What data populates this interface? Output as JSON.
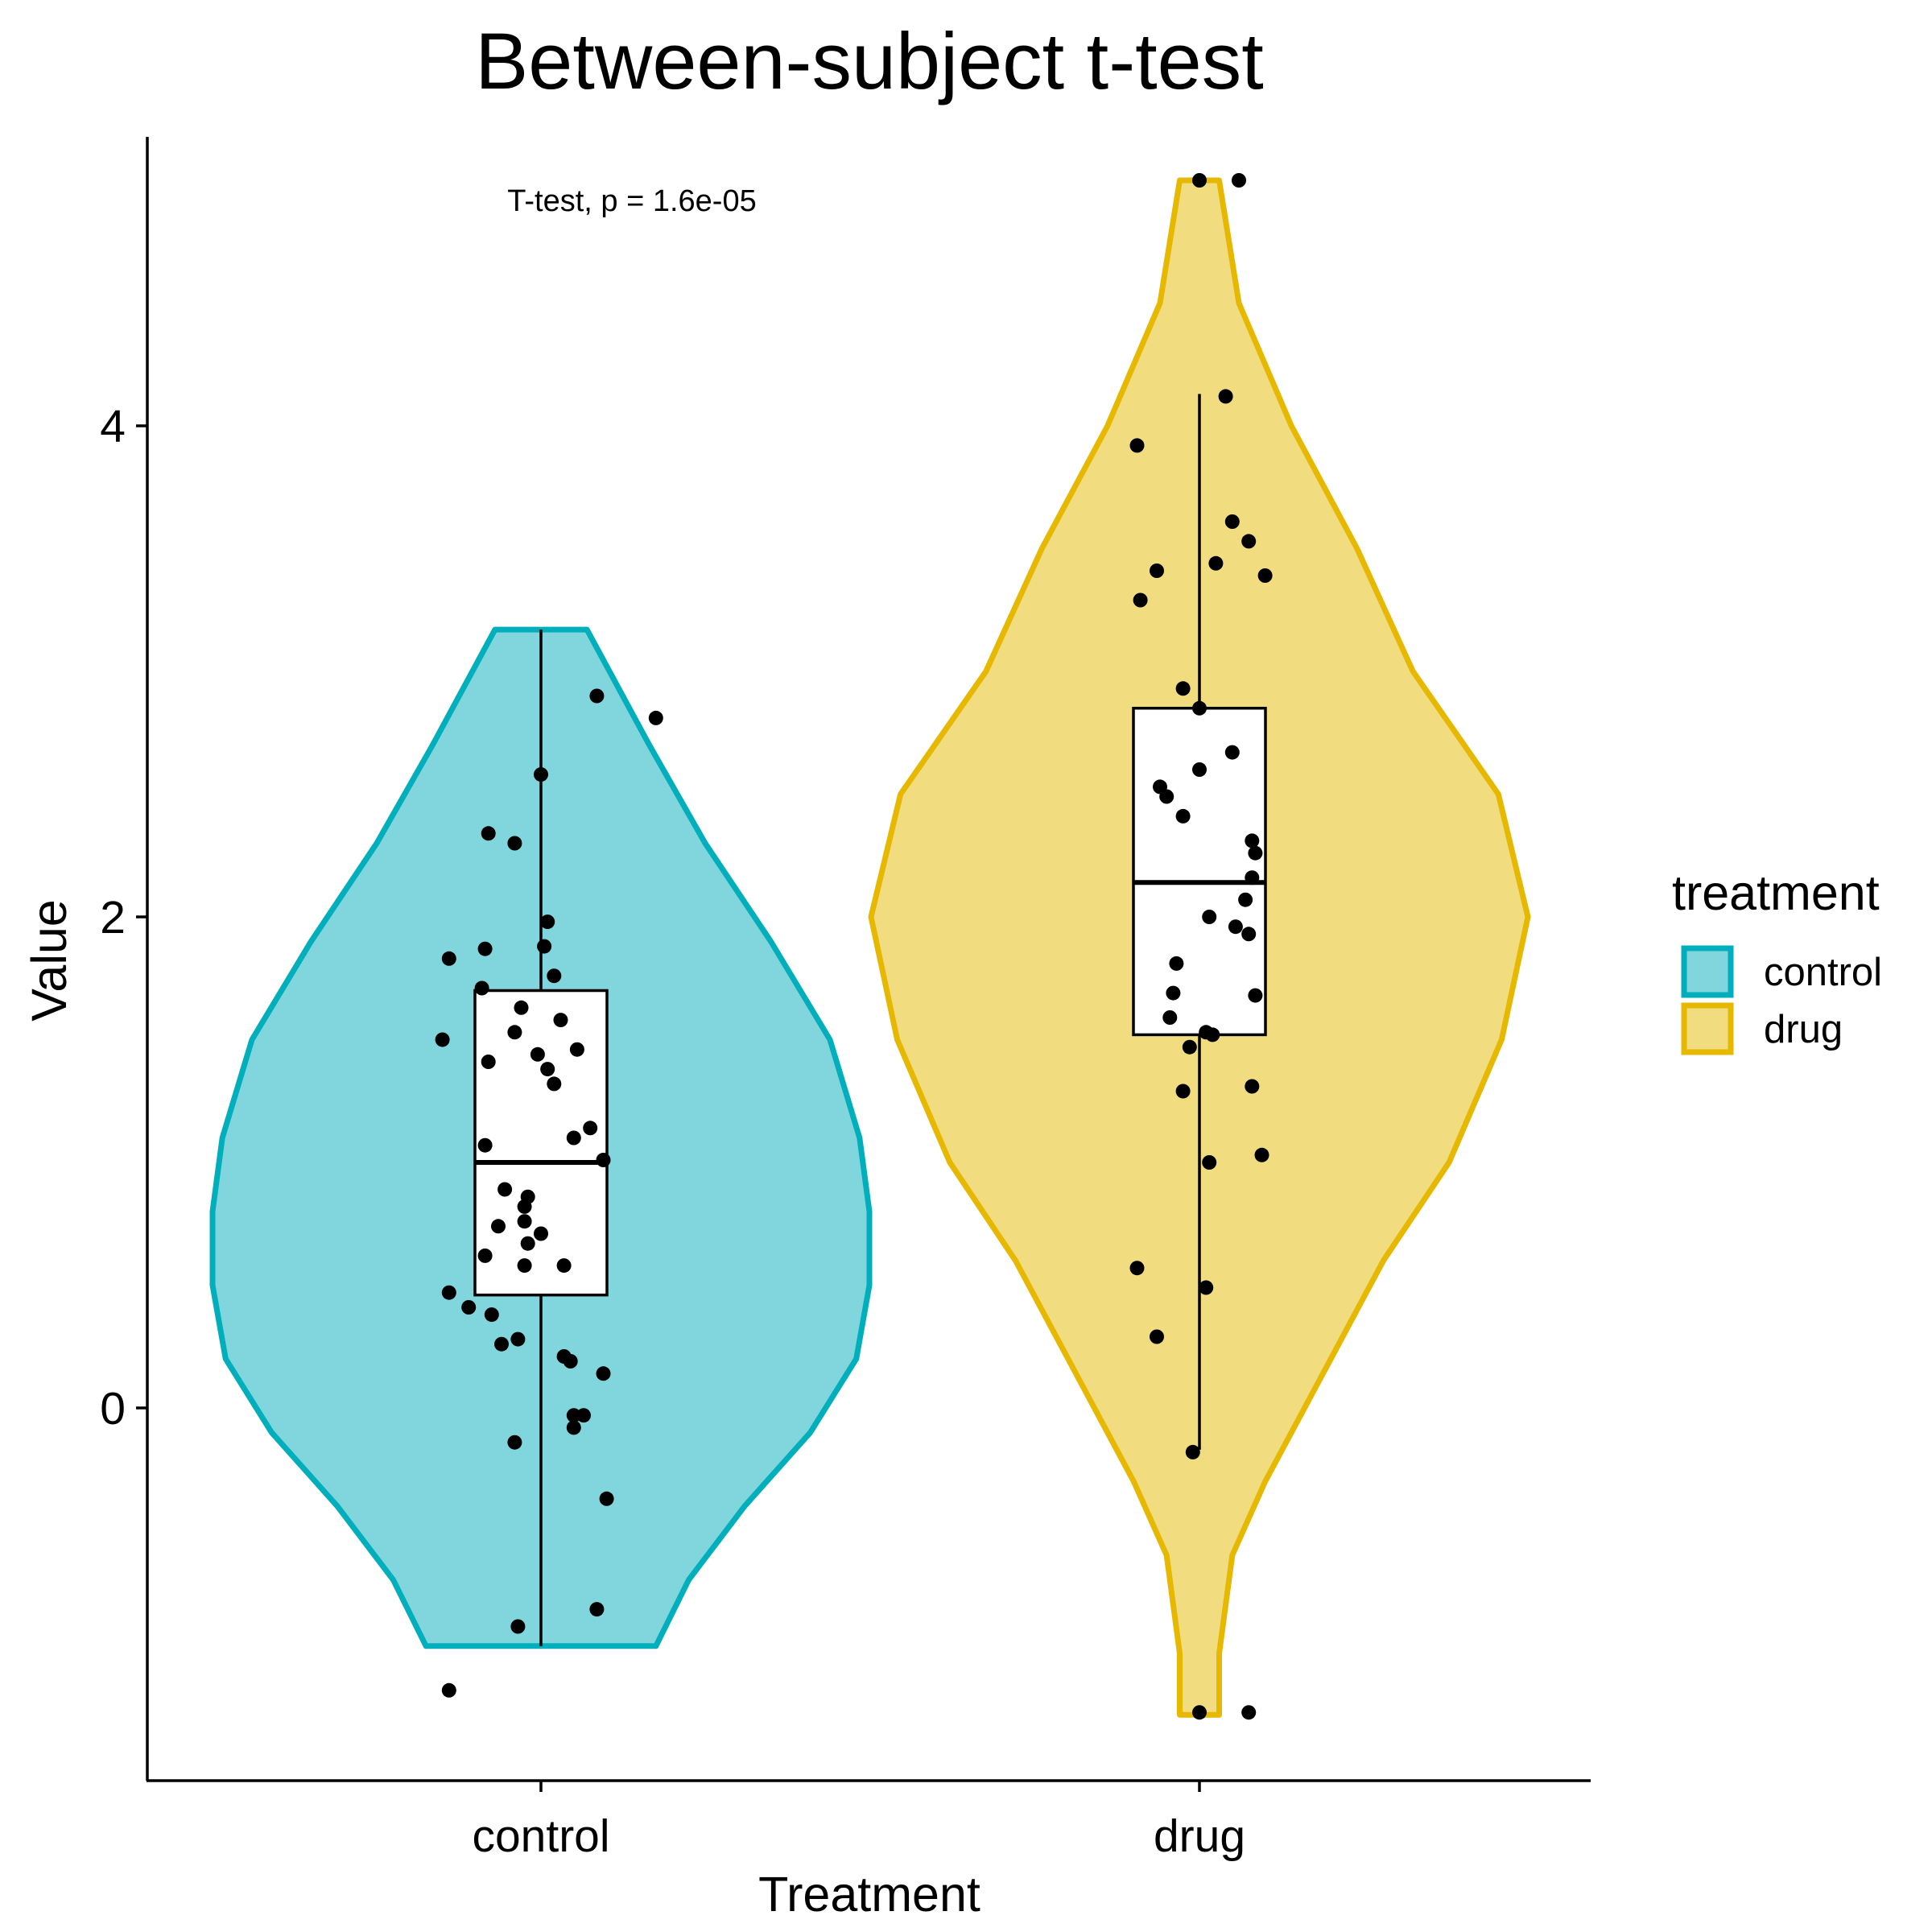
{
  "chart_data": {
    "type": "violin",
    "title": "Between-subject t-test",
    "xlabel": "Treatment",
    "ylabel": "Value",
    "categories": [
      "control",
      "drug"
    ],
    "ylim": [
      -1.55,
      5.15
    ],
    "yticks": [
      0,
      2,
      4
    ],
    "ytick_labels": [
      "0",
      "2",
      "4"
    ],
    "annotation": "T-test, p = 1.6e-05",
    "legend": {
      "title": "treatment",
      "position": "right",
      "entries": [
        "control",
        "drug"
      ]
    },
    "colors": {
      "control": {
        "fill": "#80d6dc",
        "stroke": "#00afbb"
      },
      "drug": {
        "fill": "#f1dc80",
        "stroke": "#e7b800"
      }
    },
    "series": [
      {
        "category": "control",
        "violin_density": [
          [
            -0.97,
            0.35
          ],
          [
            -0.7,
            0.45
          ],
          [
            -0.4,
            0.62
          ],
          [
            -0.1,
            0.82
          ],
          [
            0.2,
            0.96
          ],
          [
            0.5,
            1.0
          ],
          [
            0.8,
            1.0
          ],
          [
            1.1,
            0.97
          ],
          [
            1.5,
            0.88
          ],
          [
            1.9,
            0.7
          ],
          [
            2.3,
            0.5
          ],
          [
            2.7,
            0.33
          ],
          [
            3.17,
            0.14
          ]
        ],
        "box": {
          "min": -0.97,
          "q1": 0.46,
          "median": 1.0,
          "q3": 1.7,
          "max": 3.17
        },
        "points": [
          {
            "x": -0.28,
            "y": 0.47
          },
          {
            "x": 0.19,
            "y": 1.01
          },
          {
            "x": -0.17,
            "y": 1.87
          },
          {
            "x": -0.28,
            "y": -1.15
          },
          {
            "x": 0.35,
            "y": 2.81
          },
          {
            "x": -0.18,
            "y": 1.71
          },
          {
            "x": -0.07,
            "y": -0.89
          },
          {
            "x": 0.02,
            "y": 1.38
          },
          {
            "x": -0.17,
            "y": 0.62
          },
          {
            "x": -0.13,
            "y": 0.74
          },
          {
            "x": -0.07,
            "y": 0.28
          },
          {
            "x": 0.1,
            "y": -0.08
          },
          {
            "x": -0.08,
            "y": 2.3
          },
          {
            "x": 0.06,
            "y": 1.58
          },
          {
            "x": -0.3,
            "y": 1.5
          },
          {
            "x": -0.16,
            "y": 1.41
          },
          {
            "x": -0.06,
            "y": 1.63
          },
          {
            "x": -0.28,
            "y": 1.83
          },
          {
            "x": 0.1,
            "y": 1.1
          },
          {
            "x": 0.0,
            "y": 2.58
          },
          {
            "x": 0.01,
            "y": 1.88
          },
          {
            "x": 0.04,
            "y": 1.32
          },
          {
            "x": 0.11,
            "y": 1.46
          },
          {
            "x": 0.0,
            "y": 0.71
          },
          {
            "x": -0.05,
            "y": 0.58
          },
          {
            "x": -0.12,
            "y": 0.26
          },
          {
            "x": -0.05,
            "y": 0.82
          },
          {
            "x": 0.07,
            "y": 0.58
          },
          {
            "x": 0.15,
            "y": 1.14
          },
          {
            "x": 0.1,
            "y": -0.03
          },
          {
            "x": -0.08,
            "y": -0.14
          },
          {
            "x": 0.17,
            "y": 2.9
          },
          {
            "x": -0.22,
            "y": 0.41
          },
          {
            "x": -0.08,
            "y": 1.53
          },
          {
            "x": -0.11,
            "y": 0.89
          },
          {
            "x": -0.15,
            "y": 0.38
          },
          {
            "x": -0.04,
            "y": 0.67
          },
          {
            "x": -0.01,
            "y": 1.44
          },
          {
            "x": 0.2,
            "y": -0.37
          },
          {
            "x": 0.04,
            "y": 1.76
          },
          {
            "x": -0.16,
            "y": 2.34
          },
          {
            "x": 0.09,
            "y": 0.19
          },
          {
            "x": -0.17,
            "y": 1.07
          },
          {
            "x": 0.07,
            "y": 0.21
          },
          {
            "x": -0.04,
            "y": 0.86
          },
          {
            "x": 0.13,
            "y": -0.03
          },
          {
            "x": 0.02,
            "y": 1.98
          },
          {
            "x": -0.05,
            "y": 0.76
          },
          {
            "x": 0.19,
            "y": 0.14
          },
          {
            "x": 0.17,
            "y": -0.82
          }
        ]
      },
      {
        "category": "drug",
        "violin_density": [
          [
            -1.25,
            0.06
          ],
          [
            -1.0,
            0.06
          ],
          [
            -0.6,
            0.1
          ],
          [
            -0.3,
            0.2
          ],
          [
            0.1,
            0.36
          ],
          [
            0.6,
            0.56
          ],
          [
            1.0,
            0.76
          ],
          [
            1.5,
            0.92
          ],
          [
            2.0,
            1.0
          ],
          [
            2.5,
            0.91
          ],
          [
            3.0,
            0.65
          ],
          [
            3.5,
            0.48
          ],
          [
            4.0,
            0.28
          ],
          [
            4.5,
            0.12
          ],
          [
            5.0,
            0.06
          ]
        ],
        "box": {
          "min": -0.17,
          "q1": 1.52,
          "median": 2.14,
          "q3": 2.85,
          "max": 4.13
        },
        "points": [
          {
            "x": 0.0,
            "y": 5.0
          },
          {
            "x": 0.12,
            "y": 5.0
          },
          {
            "x": 0.08,
            "y": 4.12
          },
          {
            "x": -0.19,
            "y": 3.92
          },
          {
            "x": 0.1,
            "y": 3.61
          },
          {
            "x": 0.15,
            "y": 3.53
          },
          {
            "x": -0.13,
            "y": 3.41
          },
          {
            "x": 0.05,
            "y": 3.44
          },
          {
            "x": 0.2,
            "y": 3.39
          },
          {
            "x": -0.18,
            "y": 3.29
          },
          {
            "x": -0.05,
            "y": 2.93
          },
          {
            "x": 0.0,
            "y": 2.85
          },
          {
            "x": 0.1,
            "y": 2.67
          },
          {
            "x": -0.12,
            "y": 2.53
          },
          {
            "x": 0.0,
            "y": 2.6
          },
          {
            "x": -0.1,
            "y": 2.49
          },
          {
            "x": -0.05,
            "y": 2.41
          },
          {
            "x": 0.16,
            "y": 2.31
          },
          {
            "x": 0.17,
            "y": 2.26
          },
          {
            "x": 0.16,
            "y": 2.16
          },
          {
            "x": 0.14,
            "y": 2.07
          },
          {
            "x": 0.03,
            "y": 2.0
          },
          {
            "x": 0.11,
            "y": 1.96
          },
          {
            "x": 0.15,
            "y": 1.93
          },
          {
            "x": -0.07,
            "y": 1.81
          },
          {
            "x": -0.08,
            "y": 1.69
          },
          {
            "x": 0.17,
            "y": 1.68
          },
          {
            "x": -0.09,
            "y": 1.59
          },
          {
            "x": 0.02,
            "y": 1.53
          },
          {
            "x": 0.04,
            "y": 1.52
          },
          {
            "x": -0.03,
            "y": 1.47
          },
          {
            "x": 0.16,
            "y": 1.31
          },
          {
            "x": -0.05,
            "y": 1.29
          },
          {
            "x": 0.19,
            "y": 1.03
          },
          {
            "x": 0.03,
            "y": 1.0
          },
          {
            "x": -0.19,
            "y": 0.57
          },
          {
            "x": 0.02,
            "y": 0.49
          },
          {
            "x": -0.13,
            "y": 0.29
          },
          {
            "x": -0.02,
            "y": -0.18
          },
          {
            "x": 0.0,
            "y": -1.24
          },
          {
            "x": 0.15,
            "y": -1.24
          }
        ]
      }
    ]
  }
}
